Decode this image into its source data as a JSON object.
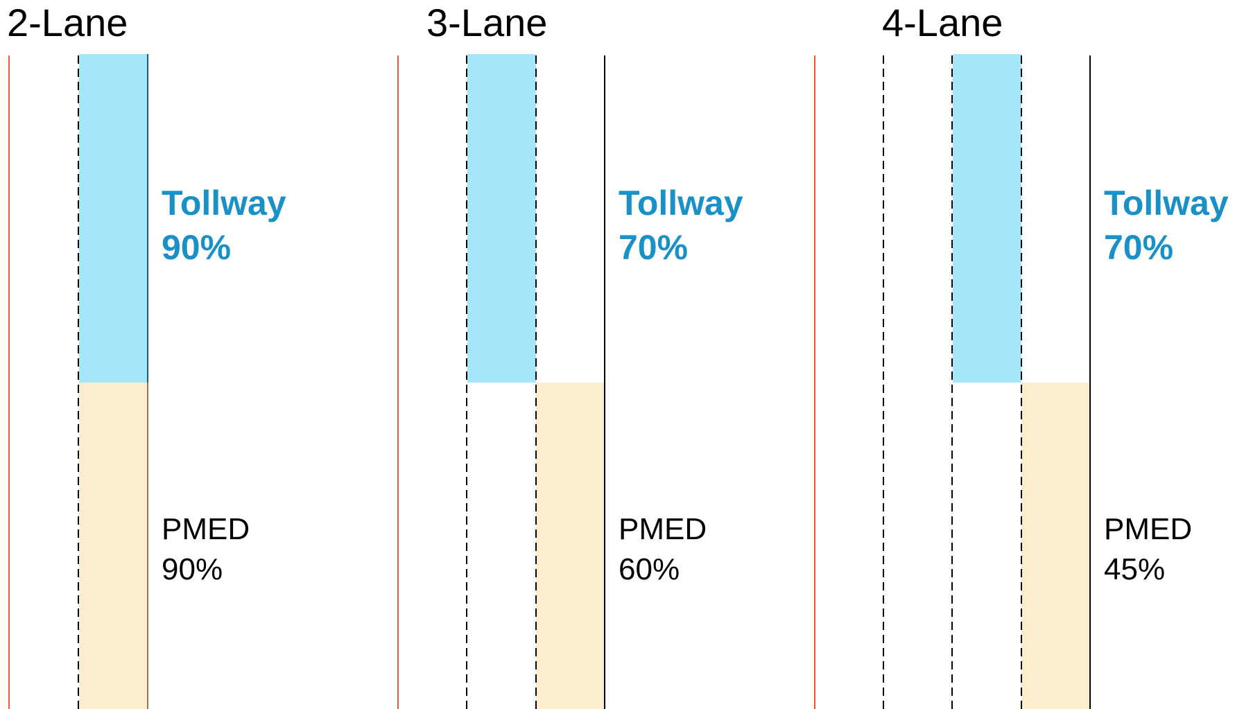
{
  "colors": {
    "tollway_fill": "#a6e6fb",
    "tollway_text": "#1a91c6",
    "pmed_fill": "#fcedcd",
    "road_edge": "#e2583a",
    "lane_line": "#000000"
  },
  "panels": [
    {
      "title": "2-Lane",
      "tollway_label": "Tollway",
      "tollway_value": "90%",
      "pmed_label": "PMED",
      "pmed_value": "90%"
    },
    {
      "title": "3-Lane",
      "tollway_label": "Tollway",
      "tollway_value": "70%",
      "pmed_label": "PMED",
      "pmed_value": "60%"
    },
    {
      "title": "4-Lane",
      "tollway_label": "Tollway",
      "tollway_value": "70%",
      "pmed_label": "PMED",
      "pmed_value": "45%"
    }
  ]
}
